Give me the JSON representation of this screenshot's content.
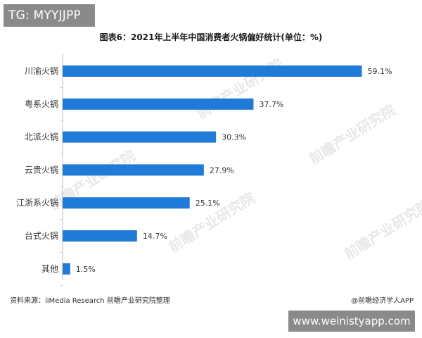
{
  "watermark_top": "TG: MYYJJPP",
  "watermark_bottom": "www.weinistyapp.com",
  "background_watermark": "前瞻产业研究院",
  "source": "资料来源：iiMedia Research 前瞻产业研究院整理",
  "credit": "@前瞻经济学人APP",
  "colors": {
    "bar": "#1f7ad8",
    "axis": "#bfbfbf"
  },
  "chart_data": {
    "type": "bar",
    "orientation": "horizontal",
    "title": "图表6：2021年上半年中国消费者火锅偏好统计(单位：%)",
    "categories": [
      "川渝火锅",
      "粤系火锅",
      "北派火锅",
      "云贵火锅",
      "江浙系火锅",
      "台式火锅",
      "其他"
    ],
    "values": [
      59.1,
      37.7,
      30.3,
      27.9,
      25.1,
      14.7,
      1.5
    ],
    "value_labels": [
      "59.1%",
      "37.7%",
      "30.3%",
      "27.9%",
      "25.1%",
      "14.7%",
      "1.5%"
    ],
    "xlim": [
      0,
      60
    ],
    "grid": false,
    "legend": "none"
  }
}
